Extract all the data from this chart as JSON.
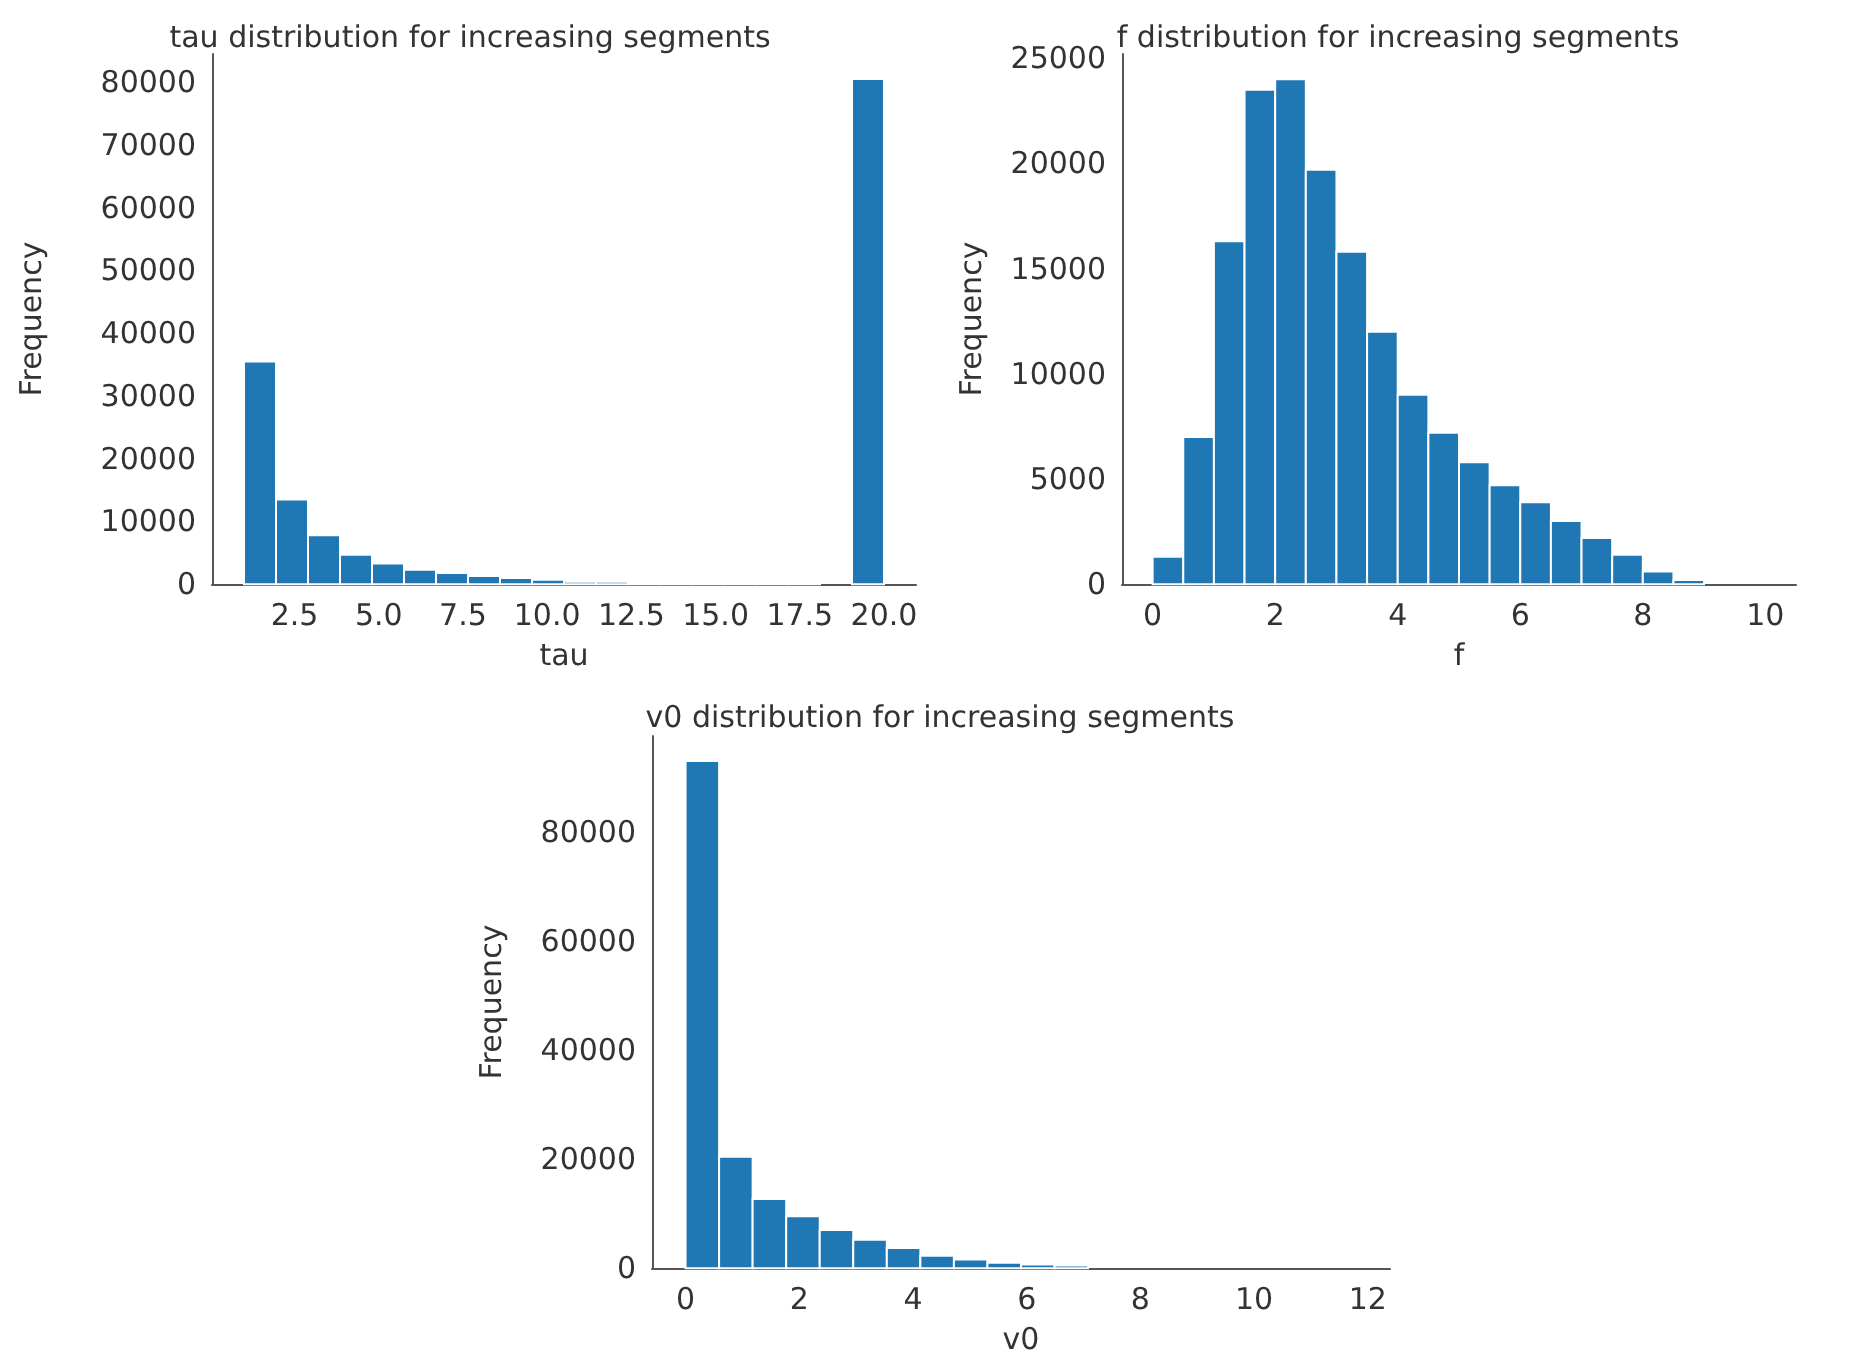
{
  "chart_data": [
    {
      "type": "histogram",
      "title": "tau distribution for increasing segments",
      "xlabel": "tau",
      "ylabel": "Frequency",
      "color": "#1f77b4",
      "bins": [
        1,
        1.95,
        2.9,
        3.85,
        4.8,
        5.75,
        6.7,
        7.65,
        8.6,
        9.55,
        10.5,
        11.45,
        12.4,
        13.35,
        14.3,
        15.25,
        16.2,
        17.15,
        18.1,
        19.05,
        20
      ],
      "values": [
        35500,
        13500,
        7800,
        4700,
        3300,
        2300,
        1800,
        1300,
        1000,
        700,
        400,
        400,
        200,
        200,
        200,
        200,
        200,
        200,
        0,
        80500
      ],
      "xlim": [
        0.05,
        20.95
      ],
      "xticks": [
        {
          "value": 2.5,
          "label": "2.5"
        },
        {
          "value": 5,
          "label": "5.0"
        },
        {
          "value": 7.5,
          "label": "7.5"
        },
        {
          "value": 10,
          "label": "10.0"
        },
        {
          "value": 12.5,
          "label": "12.5"
        },
        {
          "value": 15,
          "label": "15.0"
        },
        {
          "value": 17.5,
          "label": "17.5"
        },
        {
          "value": 20,
          "label": "20.0"
        }
      ],
      "ylim": [
        0,
        84500
      ],
      "yticks": [
        0,
        10000,
        20000,
        30000,
        40000,
        50000,
        60000,
        70000,
        80000
      ],
      "grid": false
    },
    {
      "type": "histogram",
      "title": "f distribution for increasing segments",
      "xlabel": "f",
      "ylabel": "Frequency",
      "color": "#1f77b4",
      "bins": [
        0,
        0.5,
        1,
        1.5,
        2,
        2.5,
        3,
        3.5,
        4,
        4.5,
        5,
        5.5,
        6,
        6.5,
        7,
        7.5,
        8,
        8.5,
        9,
        9.5,
        10
      ],
      "values": [
        1300,
        7000,
        16300,
        23500,
        24000,
        19700,
        15800,
        12000,
        9000,
        7200,
        5800,
        4700,
        3900,
        3000,
        2200,
        1400,
        600,
        200,
        0,
        0
      ],
      "xlim": [
        -0.5,
        10.5
      ],
      "xticks": [
        0,
        2,
        4,
        6,
        8,
        10
      ],
      "ylim": [
        0,
        25200
      ],
      "yticks": [
        0,
        5000,
        10000,
        15000,
        20000,
        25000
      ],
      "grid": false
    },
    {
      "type": "histogram",
      "title": "v0 distribution for increasing segments",
      "xlabel": "v0",
      "ylabel": "Frequency",
      "color": "#1f77b4",
      "bins": [
        0,
        0.59,
        1.18,
        1.77,
        2.36,
        2.95,
        3.54,
        4.13,
        4.72,
        5.31,
        5.9,
        6.49,
        7.08,
        7.67,
        8.26,
        8.85,
        9.44,
        10.03,
        10.62,
        11.21,
        11.8
      ],
      "values": [
        92900,
        20400,
        12700,
        9500,
        7000,
        5200,
        3700,
        2300,
        1600,
        1000,
        700,
        500,
        0,
        0,
        0,
        0,
        0,
        0,
        0,
        0
      ],
      "xlim": [
        -0.59,
        12.39
      ],
      "xticks": [
        0,
        2,
        4,
        6,
        8,
        10,
        12
      ],
      "ylim": [
        0,
        97500
      ],
      "yticks": [
        0,
        20000,
        40000,
        60000,
        80000
      ],
      "grid": false
    }
  ]
}
